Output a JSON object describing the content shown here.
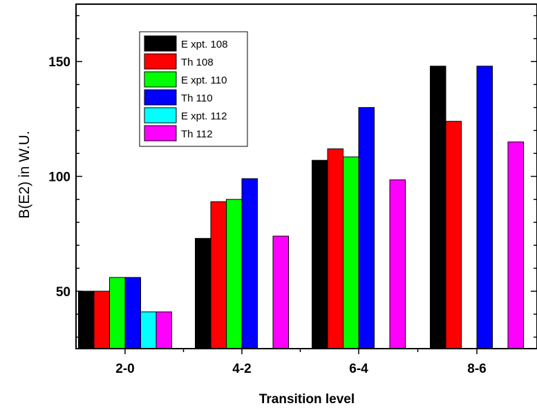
{
  "chart_data": {
    "type": "bar",
    "title": "",
    "xlabel": "Transition level",
    "ylabel": "B(E2) in W.U.",
    "categories": [
      "2-0",
      "4-2",
      "6-4",
      "8-6"
    ],
    "ylim": [
      25,
      175
    ],
    "yticks": [
      50,
      100,
      150
    ],
    "grid": false,
    "legend_position": "top-left",
    "series": [
      {
        "name": "E xpt. 108",
        "color": "#000000",
        "values": [
          50,
          73,
          107,
          148
        ]
      },
      {
        "name": "Th 108",
        "color": "#ff0000",
        "values": [
          50,
          89,
          112,
          124
        ]
      },
      {
        "name": "E xpt. 110",
        "color": "#00ff00",
        "values": [
          56,
          90,
          108.5,
          null
        ]
      },
      {
        "name": "Th 110",
        "color": "#0000ff",
        "values": [
          56,
          99,
          130,
          148
        ]
      },
      {
        "name": "E xpt. 112",
        "color": "#00ffff",
        "values": [
          41,
          null,
          null,
          null
        ]
      },
      {
        "name": "Th 112",
        "color": "#ff00ff",
        "values": [
          41,
          74,
          98.5,
          115
        ]
      }
    ]
  }
}
